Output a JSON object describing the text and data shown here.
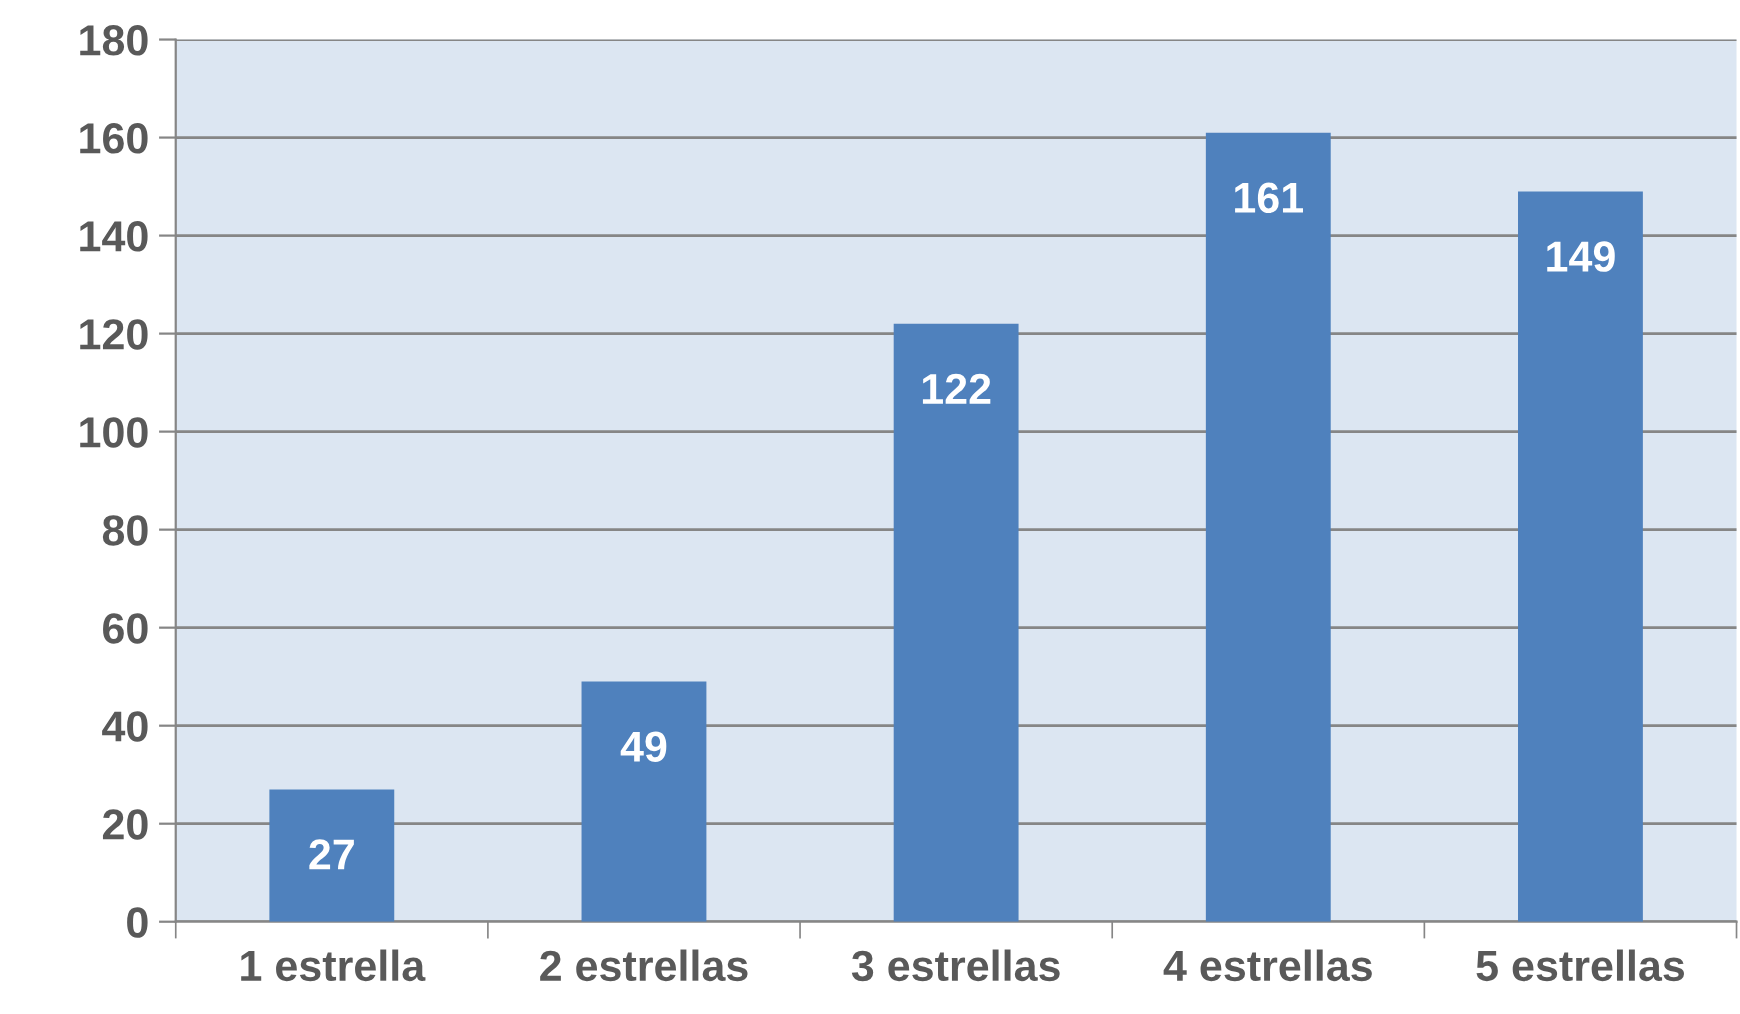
{
  "chart_data": {
    "type": "bar",
    "categories": [
      "1 estrella",
      "2 estrellas",
      "3 estrellas",
      "4 estrellas",
      "5 estrellas"
    ],
    "values": [
      27,
      49,
      122,
      161,
      149
    ],
    "color": "#4f81bd",
    "ylim": [
      0,
      180
    ],
    "yticks": [
      0,
      20,
      40,
      60,
      80,
      100,
      120,
      140,
      160,
      180
    ],
    "grid": "y",
    "data_labels": true,
    "legend": false
  }
}
